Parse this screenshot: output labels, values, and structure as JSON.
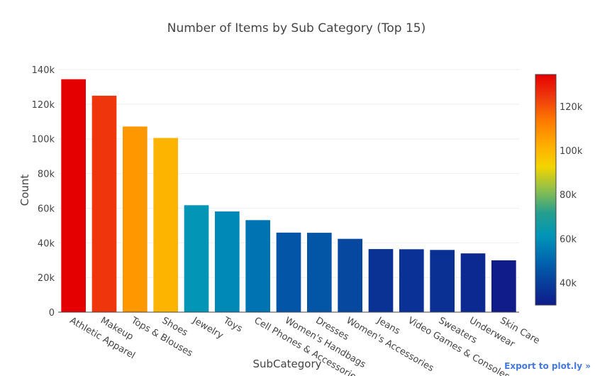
{
  "chart_data": {
    "type": "bar",
    "title": "Number of Items by Sub Category (Top 15)",
    "xlabel": "SubCategory",
    "ylabel": "Count",
    "ylim": [
      0,
      140000
    ],
    "yticks": [
      0,
      20000,
      40000,
      60000,
      80000,
      100000,
      120000,
      140000
    ],
    "ytick_labels": [
      "0",
      "20k",
      "40k",
      "60k",
      "80k",
      "100k",
      "120k",
      "140k"
    ],
    "categories": [
      "Athletic Apparel",
      "Makeup",
      "Tops & Blouses",
      "Shoes",
      "Jewelry",
      "Toys",
      "Cell Phones & Accessories",
      "Women's Handbags",
      "Dresses",
      "Women's Accessories",
      "Jeans",
      "Video Games & Consoles",
      "Sweaters",
      "Underwear",
      "Skin Care"
    ],
    "values": [
      134400,
      124900,
      107100,
      100500,
      61700,
      58100,
      53100,
      45900,
      45800,
      42300,
      36400,
      36300,
      35900,
      33900,
      29900
    ],
    "grid": true,
    "colorbar": {
      "colorscale": "Jet-like (blue to red)",
      "range": [
        29900,
        134400
      ],
      "ticks": [
        40000,
        60000,
        80000,
        100000,
        120000
      ],
      "tick_labels": [
        "40k",
        "60k",
        "80k",
        "100k",
        "120k"
      ]
    }
  },
  "export_label": "Export to plot.ly »",
  "colors": {
    "scale": [
      "#0f1c8a",
      "#073f9c",
      "#0069b0",
      "#0095b8",
      "#259f8e",
      "#8ebf4d",
      "#f3d500",
      "#ffaa00",
      "#fd7a00",
      "#ef3a0c",
      "#e50000"
    ]
  }
}
